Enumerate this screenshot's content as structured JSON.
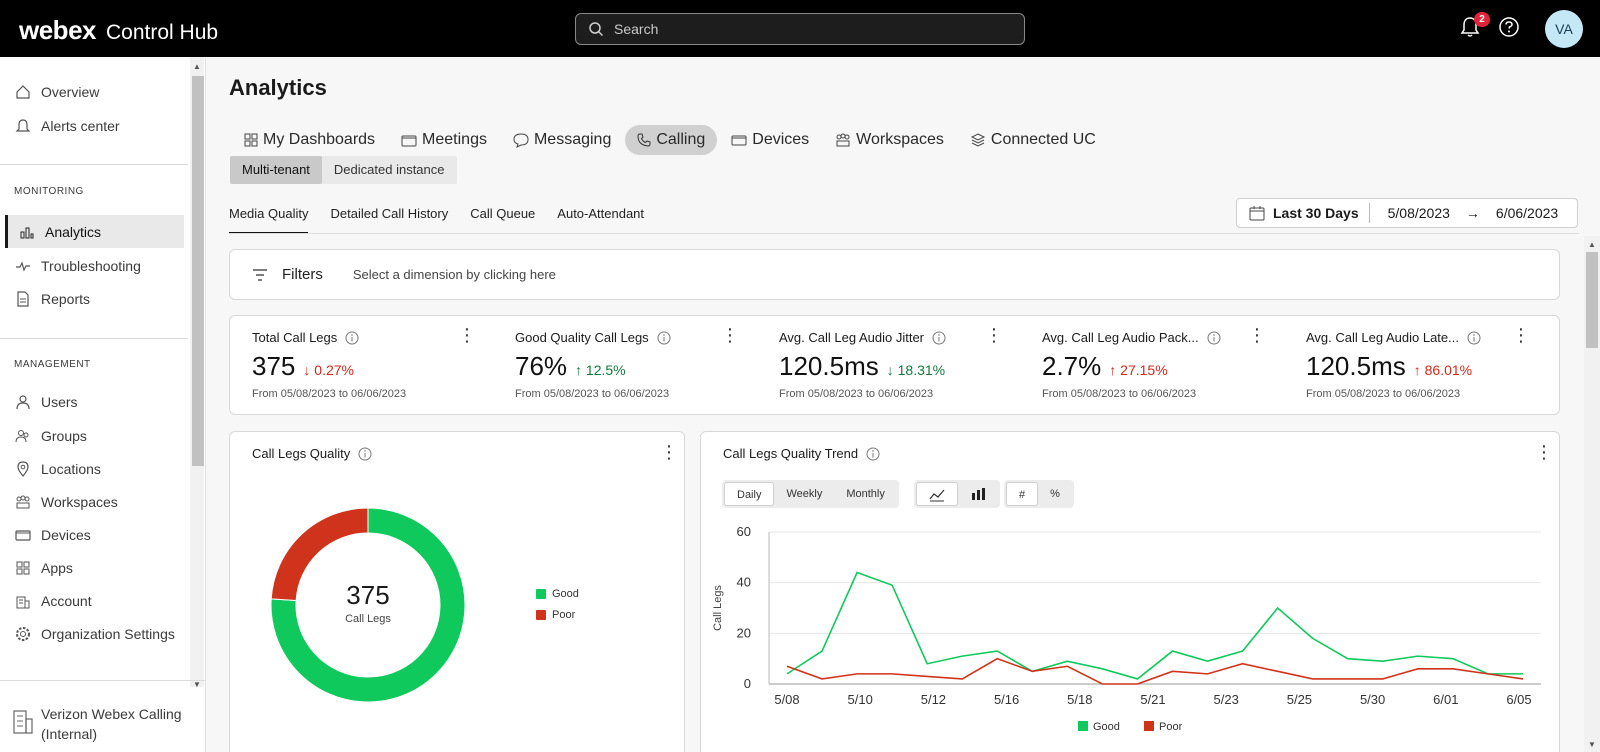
{
  "header": {
    "brand_primary": "webex",
    "brand_secondary": "Control Hub",
    "search_placeholder": "Search",
    "notification_count": "2",
    "avatar_initials": "VA"
  },
  "sidebar": {
    "top_items": [
      {
        "label": "Overview",
        "icon": "home-icon"
      },
      {
        "label": "Alerts center",
        "icon": "bell-icon"
      }
    ],
    "monitoring_title": "MONITORING",
    "monitoring_items": [
      {
        "label": "Analytics",
        "icon": "analytics-icon",
        "active": true
      },
      {
        "label": "Troubleshooting",
        "icon": "pulse-icon"
      },
      {
        "label": "Reports",
        "icon": "report-icon"
      }
    ],
    "management_title": "MANAGEMENT",
    "management_items": [
      {
        "label": "Users",
        "icon": "user-icon"
      },
      {
        "label": "Groups",
        "icon": "groups-icon"
      },
      {
        "label": "Locations",
        "icon": "location-icon"
      },
      {
        "label": "Workspaces",
        "icon": "workspaces-icon"
      },
      {
        "label": "Devices",
        "icon": "devices-icon"
      },
      {
        "label": "Apps",
        "icon": "apps-icon"
      },
      {
        "label": "Account",
        "icon": "account-icon"
      },
      {
        "label": "Organization Settings",
        "icon": "gear-icon"
      }
    ],
    "org_name": "Verizon Webex Calling (Internal)"
  },
  "page": {
    "title": "Analytics",
    "tabs": [
      {
        "label": "My Dashboards",
        "icon": "dashboard-icon"
      },
      {
        "label": "Meetings",
        "icon": "meetings-icon"
      },
      {
        "label": "Messaging",
        "icon": "messaging-icon"
      },
      {
        "label": "Calling",
        "icon": "phone-icon",
        "active": true
      },
      {
        "label": "Devices",
        "icon": "devices-icon"
      },
      {
        "label": "Workspaces",
        "icon": "workspaces-icon"
      },
      {
        "label": "Connected UC",
        "icon": "connected-uc-icon"
      }
    ],
    "subtabs": [
      {
        "label": "Multi-tenant",
        "active": true
      },
      {
        "label": "Dedicated instance"
      }
    ],
    "report_tabs": [
      {
        "label": "Media Quality",
        "active": true
      },
      {
        "label": "Detailed Call History"
      },
      {
        "label": "Call Queue"
      },
      {
        "label": "Auto-Attendant"
      }
    ],
    "date_range": {
      "label": "Last 30 Days",
      "start": "5/08/2023",
      "arrow": "→",
      "end": "6/06/2023"
    },
    "filters": {
      "label": "Filters",
      "hint": "Select a dimension by clicking here"
    }
  },
  "kpis": [
    {
      "title": "Total Call Legs",
      "value": "375",
      "delta": "↓ 0.27%",
      "delta_color": "#d0281b",
      "range": "From 05/08/2023 to 06/06/2023"
    },
    {
      "title": "Good Quality Call Legs",
      "value": "76%",
      "delta": "↑ 12.5%",
      "delta_color": "#117a3b",
      "range": "From 05/08/2023 to 06/06/2023"
    },
    {
      "title": "Avg. Call Leg Audio Jitter",
      "value": "120.5ms",
      "delta": "↓ 18.31%",
      "delta_color": "#117a3b",
      "range": "From 05/08/2023 to 06/06/2023"
    },
    {
      "title": "Avg. Call Leg Audio Pack...",
      "value": "2.7%",
      "delta": "↑ 27.15%",
      "delta_color": "#d0281b",
      "range": "From 05/08/2023 to 06/06/2023"
    },
    {
      "title": "Avg. Call Leg Audio Late...",
      "value": "120.5ms",
      "delta": "↑ 86.01%",
      "delta_color": "#d0281b",
      "range": "From 05/08/2023 to 06/06/2023"
    }
  ],
  "quality_card": {
    "title": "Call Legs Quality",
    "center_value": "375",
    "center_label": "Call Legs"
  },
  "trend_card": {
    "title": "Call Legs Quality Trend",
    "granularity": [
      {
        "label": "Daily",
        "active": true
      },
      {
        "label": "Weekly"
      },
      {
        "label": "Monthly"
      }
    ],
    "chart_types": [
      {
        "icon": "line-chart-icon",
        "active": true
      },
      {
        "icon": "bar-chart-icon"
      }
    ],
    "units": [
      {
        "label": "#",
        "active": true
      },
      {
        "label": "%"
      }
    ]
  },
  "colors": {
    "good": "#10c95c",
    "poor": "#d0331b"
  },
  "chart_data": [
    {
      "type": "pie",
      "labels": [
        "Good",
        "Poor"
      ],
      "values": [
        285,
        90
      ],
      "legend": [
        "Good",
        "Poor"
      ],
      "legend_position": "right"
    },
    {
      "type": "line",
      "ylabel": "Call Legs",
      "ylim": [
        0,
        60
      ],
      "y_ticks": [
        0,
        20,
        40,
        60
      ],
      "x_tick_labels": [
        "5/08",
        "5/10",
        "5/12",
        "5/16",
        "5/18",
        "5/21",
        "5/23",
        "5/25",
        "5/30",
        "6/01",
        "6/05"
      ],
      "legend_position": "bottom",
      "grid": true,
      "series": [
        {
          "name": "Good",
          "values": [
            4,
            13,
            44,
            39,
            8,
            11,
            13,
            5,
            9,
            6,
            2,
            13,
            9,
            13,
            30,
            18,
            10,
            9,
            11,
            10,
            4,
            4
          ]
        },
        {
          "name": "Poor",
          "values": [
            7,
            2,
            4,
            4,
            3,
            2,
            10,
            5,
            7,
            0,
            0,
            5,
            4,
            8,
            5,
            2,
            2,
            2,
            6,
            6,
            4,
            2
          ]
        }
      ]
    }
  ]
}
